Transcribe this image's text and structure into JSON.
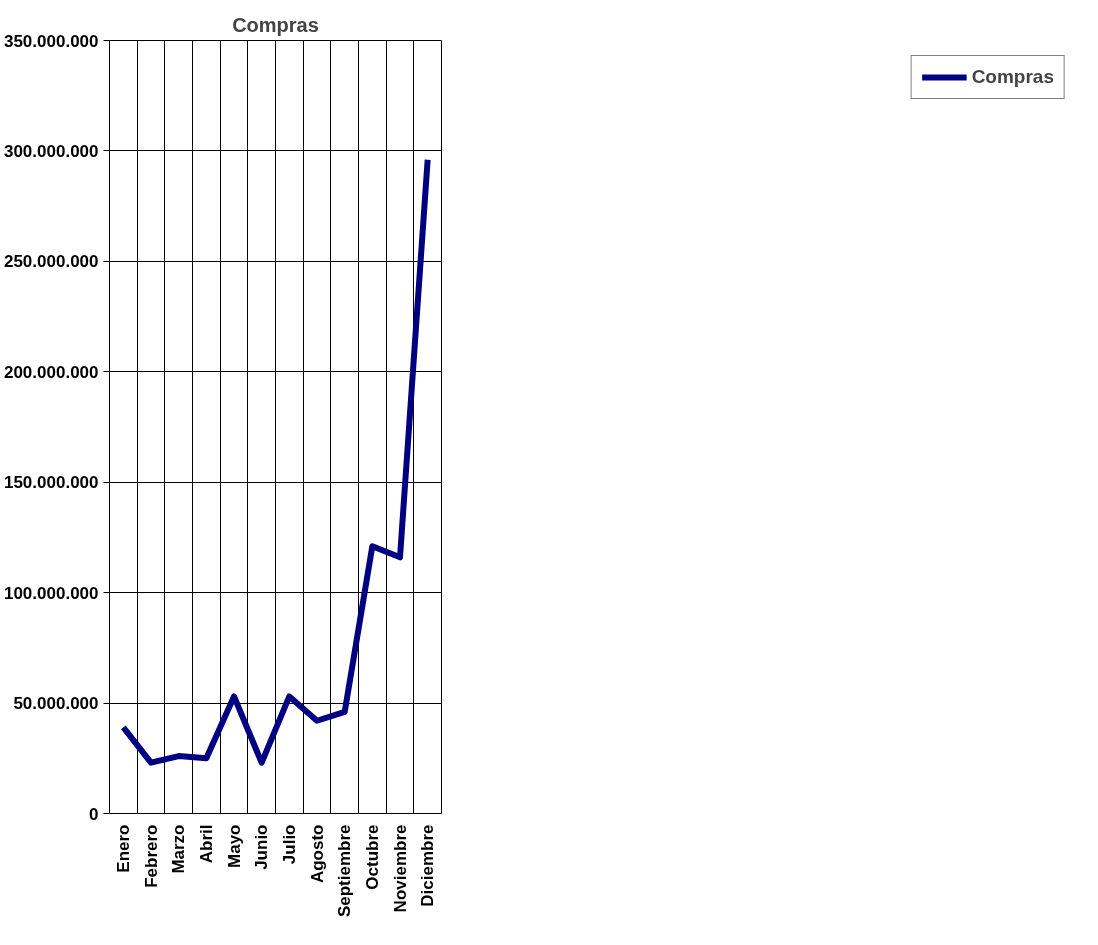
{
  "chart_data": {
    "type": "line",
    "title": "Compras",
    "categories": [
      "Enero",
      "Febrero",
      "Marzo",
      "Abril",
      "Mayo",
      "Junio",
      "Julio",
      "Agosto",
      "Septiembre",
      "Octubre",
      "Noviembre",
      "Diciembre"
    ],
    "series": [
      {
        "name": "Compras",
        "color": "#000080",
        "values": [
          39000000,
          23000000,
          26000000,
          25000000,
          53000000,
          23000000,
          53000000,
          42000000,
          46000000,
          121000000,
          116000000,
          296000000
        ]
      }
    ],
    "ylim": [
      0,
      350000000
    ],
    "yticks": [
      {
        "value": 0,
        "label": "0"
      },
      {
        "value": 50000000,
        "label": "50.000.000"
      },
      {
        "value": 100000000,
        "label": "100.000.000"
      },
      {
        "value": 150000000,
        "label": "150.000.000"
      },
      {
        "value": 200000000,
        "label": "200.000.000"
      },
      {
        "value": 250000000,
        "label": "250.000.000"
      },
      {
        "value": 300000000,
        "label": "300.000.000"
      },
      {
        "value": 350000000,
        "label": "350.000.000"
      }
    ],
    "grid": true,
    "legend": "right",
    "marker": "none",
    "line_style": "solid"
  }
}
